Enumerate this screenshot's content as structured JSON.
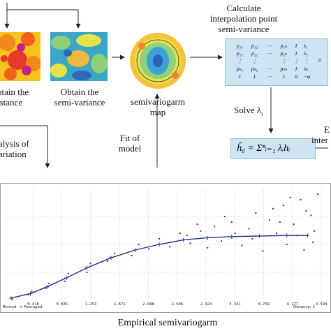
{
  "labels": {
    "obtain_distance": [
      "btain the",
      "istance"
    ],
    "obtain_semivariance": [
      "Obtain the",
      "semi-variance"
    ],
    "semivariogram_map": [
      "semivariogarm",
      "map"
    ],
    "calculate": [
      "Calculate",
      "interpolation point",
      "semi-variance"
    ],
    "analysis": [
      "alysis of",
      "ariation"
    ],
    "fit_model": [
      "Fit of",
      "model"
    ],
    "solve": "Solve λ",
    "solve_sub": "i",
    "right_partial": [
      "E",
      "inter"
    ],
    "formula": "ĥ₀ = Σⁿᵢ₌₁ λᵢhᵢ",
    "caption": "Empirical semivariogarm"
  },
  "matrix": {
    "rows": [
      [
        "p₁₁",
        "p₁₂",
        "⋯",
        "p₁ₙ",
        "1"
      ],
      [
        "p₂₁",
        "p₂₂",
        "⋯",
        "p₂ₙ",
        "1"
      ],
      [
        "⋮",
        "⋮",
        "",
        "⋮",
        "⋮"
      ],
      [
        "pₙ₁",
        "pₙ₂",
        "⋯",
        "pₙₙ",
        "1"
      ],
      [
        "1",
        "1",
        "⋯",
        "1",
        "0"
      ]
    ],
    "vector": [
      "λ₁",
      "λ₂",
      "⋮",
      "λₙ",
      "−φ"
    ],
    "equals": "="
  },
  "chart_data": {
    "type": "scatter",
    "title": "",
    "xlabel": "Distance, 1",
    "ylabel": "",
    "x_ticks": [
      "0.418",
      "0.835",
      "1.253",
      "1.671",
      "2.088",
      "2.506",
      "2.924",
      "3.341",
      "3.759",
      "4.177",
      "4.594"
    ],
    "legend": [
      "Binned",
      "Averaged"
    ],
    "series": [
      {
        "name": "Averaged",
        "points": [
          [
            0.1,
            0.02
          ],
          [
            0.38,
            0.06
          ],
          [
            0.62,
            0.12
          ],
          [
            0.9,
            0.2
          ],
          [
            1.2,
            0.29
          ],
          [
            1.55,
            0.38
          ],
          [
            1.9,
            0.45
          ],
          [
            2.25,
            0.5
          ],
          [
            2.6,
            0.54
          ],
          [
            2.95,
            0.56
          ],
          [
            3.3,
            0.57
          ],
          [
            3.7,
            0.575
          ],
          [
            4.1,
            0.58
          ],
          [
            4.4,
            0.58
          ]
        ]
      },
      {
        "name": "Binned",
        "points": [
          [
            0.12,
            0.01
          ],
          [
            0.35,
            0.05
          ],
          [
            0.4,
            0.08
          ],
          [
            0.6,
            0.11
          ],
          [
            0.65,
            0.15
          ],
          [
            0.88,
            0.17
          ],
          [
            0.93,
            0.24
          ],
          [
            1.2,
            0.25
          ],
          [
            1.25,
            0.33
          ],
          [
            1.5,
            0.35
          ],
          [
            1.6,
            0.42
          ],
          [
            1.85,
            0.4
          ],
          [
            1.95,
            0.5
          ],
          [
            2.1,
            0.46
          ],
          [
            2.25,
            0.55
          ],
          [
            2.4,
            0.48
          ],
          [
            2.55,
            0.6
          ],
          [
            2.7,
            0.51
          ],
          [
            2.85,
            0.62
          ],
          [
            2.95,
            0.47
          ],
          [
            3.05,
            0.66
          ],
          [
            3.15,
            0.53
          ],
          [
            3.3,
            0.7
          ],
          [
            3.45,
            0.49
          ],
          [
            3.55,
            0.64
          ],
          [
            3.65,
            0.78
          ],
          [
            3.75,
            0.44
          ],
          [
            3.85,
            0.72
          ],
          [
            3.95,
            0.6
          ],
          [
            4.05,
            0.85
          ],
          [
            4.1,
            0.5
          ],
          [
            4.2,
            0.68
          ],
          [
            4.3,
            0.9
          ],
          [
            4.35,
            0.45
          ],
          [
            4.45,
            0.76
          ],
          [
            4.5,
            0.62
          ],
          [
            4.55,
            0.95
          ],
          [
            3.9,
            0.82
          ],
          [
            3.35,
            0.6
          ],
          [
            2.65,
            0.58
          ],
          [
            4.25,
            0.58
          ],
          [
            3.6,
            0.55
          ],
          [
            4.0,
            0.7
          ],
          [
            4.48,
            0.52
          ],
          [
            3.2,
            0.75
          ],
          [
            2.8,
            0.68
          ],
          [
            4.15,
            0.92
          ],
          [
            4.38,
            0.8
          ]
        ]
      }
    ],
    "xlim": [
      0,
      4.7
    ],
    "ylim": [
      0,
      1.0
    ]
  },
  "colors": {
    "curve": "#1f2f8a",
    "point": "#8b1a1a",
    "average_marker": "#1c3cc4",
    "box": "#cfe4f2",
    "arrow": "#222222"
  }
}
